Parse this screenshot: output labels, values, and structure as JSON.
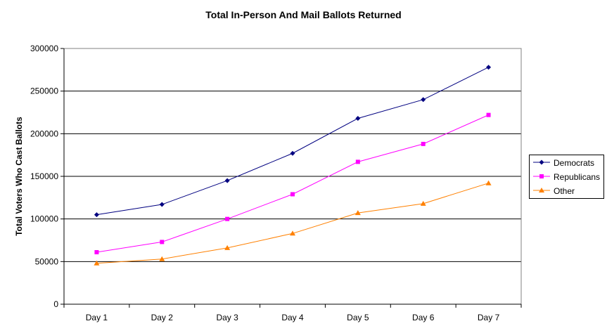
{
  "chart_data": {
    "type": "line",
    "title": "Total In-Person And Mail Ballots Returned",
    "xlabel": "",
    "ylabel": "Total Voters Who Cast Ballots",
    "categories": [
      "Day 1",
      "Day 2",
      "Day 3",
      "Day 4",
      "Day 5",
      "Day 6",
      "Day 7"
    ],
    "ylim": [
      0,
      300000
    ],
    "yticks": [
      "0",
      "50000",
      "100000",
      "150000",
      "200000",
      "250000",
      "300000"
    ],
    "grid": "horizontal",
    "legend_position": "right",
    "series": [
      {
        "name": "Democrats",
        "color": "#000080",
        "marker": "diamond",
        "values": [
          105000,
          117000,
          145000,
          177000,
          218000,
          240000,
          278000
        ]
      },
      {
        "name": "Republicans",
        "color": "#ff00ff",
        "marker": "square",
        "values": [
          61000,
          73000,
          100000,
          129000,
          167000,
          188000,
          222000
        ]
      },
      {
        "name": "Other",
        "color": "#ff8000",
        "marker": "triangle",
        "values": [
          48000,
          53000,
          66000,
          83000,
          107000,
          118000,
          142000
        ]
      }
    ]
  }
}
